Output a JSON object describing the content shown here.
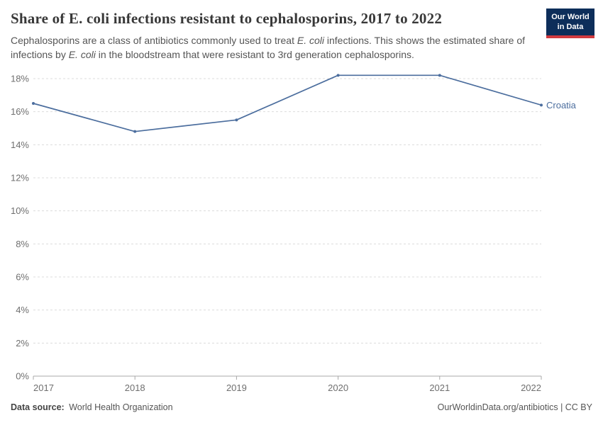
{
  "header": {
    "title": "Share of E. coli infections resistant to cephalosporins, 2017 to 2022",
    "subtitle_segments": [
      {
        "text": "Cephalosporins are a class of antibiotics commonly used to treat ",
        "italic": false
      },
      {
        "text": "E. coli",
        "italic": true
      },
      {
        "text": " infections. This shows the estimated share of infections by ",
        "italic": false
      },
      {
        "text": "E. coli",
        "italic": true
      },
      {
        "text": " in the bloodstream that were resistant to 3rd generation cephalosporins.",
        "italic": false
      }
    ],
    "logo": {
      "line1": "Our World",
      "line2": "in Data",
      "bg_color": "#0d2e5a",
      "accent_color": "#d13a3f"
    }
  },
  "chart_data": {
    "type": "line",
    "title": "Share of E. coli infections resistant to cephalosporins, 2017 to 2022",
    "x": [
      2017,
      2018,
      2019,
      2020,
      2021,
      2022
    ],
    "series": [
      {
        "name": "Croatia",
        "color": "#4c6e9e",
        "values": [
          16.5,
          14.8,
          15.5,
          18.2,
          18.2,
          16.4
        ]
      }
    ],
    "xlabel": "",
    "ylabel": "",
    "ylim": [
      0,
      18
    ],
    "yticks": [
      0,
      2,
      4,
      6,
      8,
      10,
      12,
      14,
      16,
      18
    ],
    "ytick_suffix": "%",
    "grid": "horizontal-dashed",
    "grid_color": "#dcdcdc",
    "axis_color": "#a8a8a8",
    "legend_position": "end-of-line-label"
  },
  "footer": {
    "datasource_label": "Data source:",
    "datasource_value": "World Health Organization",
    "credit": "OurWorldinData.org/antibiotics | CC BY"
  }
}
